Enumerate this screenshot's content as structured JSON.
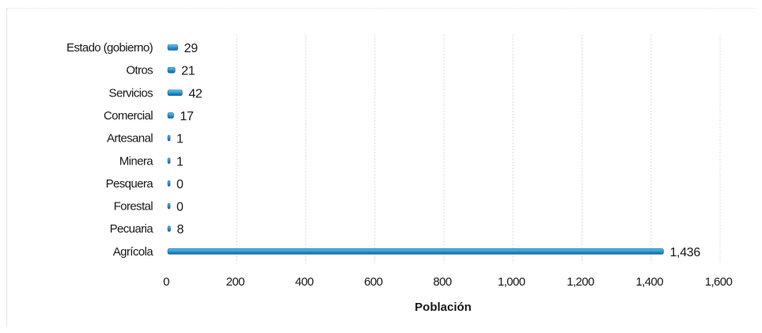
{
  "chart_data": {
    "type": "bar",
    "orientation": "horizontal",
    "categories": [
      "Estado (gobierno)",
      "Otros",
      "Servicios",
      "Comercial",
      "Artesanal",
      "Minera",
      "Pesquera",
      "Forestal",
      "Pecuaria",
      "Agrícola"
    ],
    "values": [
      29,
      21,
      42,
      17,
      1,
      1,
      0,
      0,
      8,
      1436
    ],
    "value_labels": [
      "29",
      "21",
      "42",
      "17",
      "1",
      "1",
      "0",
      "0",
      "8",
      "1,436"
    ],
    "xlabel": "Población",
    "xlim": [
      0,
      1600
    ],
    "x_ticks": [
      0,
      200,
      400,
      600,
      800,
      1000,
      1200,
      1400,
      1600
    ],
    "x_tick_labels": [
      "0",
      "200",
      "400",
      "600",
      "800",
      "1,000",
      "1,200",
      "1,400",
      "1,600"
    ],
    "grid": true,
    "legend": false,
    "bar_color": "#2b9ad6"
  }
}
